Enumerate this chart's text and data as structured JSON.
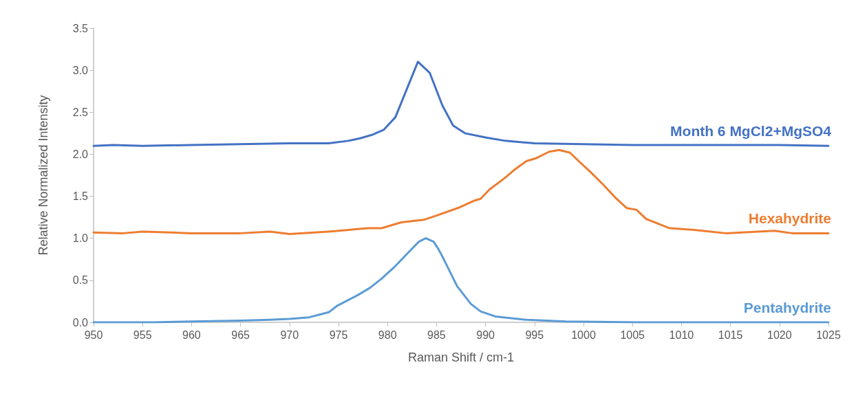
{
  "chart_data": {
    "type": "line",
    "xlabel": "Raman Shift / cm-1",
    "ylabel": "Relative Normalized Intensity",
    "xlim": [
      950,
      1025
    ],
    "xticks": [
      950,
      955,
      960,
      965,
      970,
      975,
      980,
      985,
      990,
      995,
      1000,
      1005,
      1010,
      1015,
      1020,
      1025
    ],
    "ylim": [
      0,
      3.5
    ],
    "yticks": [
      {
        "value": 0,
        "label": "0.0"
      },
      {
        "value": 0.5,
        "label": "0.5"
      },
      {
        "value": 1,
        "label": "1.0"
      },
      {
        "value": 1.5,
        "label": "1.5"
      },
      {
        "value": 2,
        "label": "2.0"
      },
      {
        "value": 2.5,
        "label": "2.5"
      },
      {
        "value": 3,
        "label": "3.0"
      },
      {
        "value": 3.5,
        "label": "3.5"
      }
    ],
    "grid": false,
    "legend": false,
    "marker": "none",
    "line_style": "solid",
    "series": [
      {
        "name": "Month 6 MgCl2+MgSO4",
        "color": "#4472c4",
        "x": [
          950,
          952,
          955,
          960,
          965,
          970,
          974,
          976,
          977.2,
          978.4,
          979.6,
          980.8,
          983.1,
          984.3,
          985.6,
          986.7,
          987.9,
          990,
          992,
          995,
          1000,
          1005,
          1010,
          1015,
          1020,
          1025
        ],
        "values": [
          2.1,
          2.11,
          2.1,
          2.11,
          2.12,
          2.13,
          2.13,
          2.16,
          2.19,
          2.23,
          2.29,
          2.44,
          3.1,
          2.97,
          2.58,
          2.34,
          2.25,
          2.2,
          2.16,
          2.13,
          2.12,
          2.11,
          2.11,
          2.11,
          2.11,
          2.1
        ]
      },
      {
        "name": "Hexahydrite",
        "color": "#ed7d31",
        "x": [
          950,
          953,
          955,
          960,
          965,
          968,
          970,
          974,
          978,
          979.4,
          981.4,
          983.7,
          985,
          987.4,
          988.9,
          989.5,
          990.4,
          992,
          993,
          994.2,
          995.1,
          996.5,
          997.5,
          998.6,
          999.5,
          1000.7,
          1002,
          1003.2,
          1004.4,
          1005.4,
          1006.4,
          1008.8,
          1011.3,
          1014.5,
          1019.5,
          1021.3,
          1025
        ],
        "values": [
          1.07,
          1.06,
          1.08,
          1.06,
          1.06,
          1.08,
          1.05,
          1.08,
          1.12,
          1.12,
          1.19,
          1.22,
          1.27,
          1.37,
          1.45,
          1.47,
          1.58,
          1.72,
          1.82,
          1.92,
          1.95,
          2.03,
          2.05,
          2.02,
          1.92,
          1.79,
          1.64,
          1.49,
          1.36,
          1.34,
          1.23,
          1.12,
          1.1,
          1.06,
          1.09,
          1.06,
          1.06
        ]
      },
      {
        "name": "Pentahydrite",
        "color": "#5b9bd5",
        "x": [
          950,
          956,
          960,
          965,
          968,
          970,
          972,
          973,
          974,
          974.9,
          976.9,
          978.2,
          979.4,
          980.8,
          982.2,
          983.2,
          983.9,
          984.7,
          985.2,
          985.7,
          987.1,
          988.5,
          989.5,
          991,
          994.2,
          998.2,
          1005.8,
          1025
        ],
        "values": [
          0,
          0,
          0.01,
          0.02,
          0.03,
          0.04,
          0.06,
          0.09,
          0.12,
          0.2,
          0.32,
          0.41,
          0.52,
          0.67,
          0.84,
          0.96,
          1.0,
          0.96,
          0.87,
          0.76,
          0.43,
          0.22,
          0.13,
          0.07,
          0.03,
          0.01,
          0,
          0
        ]
      }
    ]
  }
}
